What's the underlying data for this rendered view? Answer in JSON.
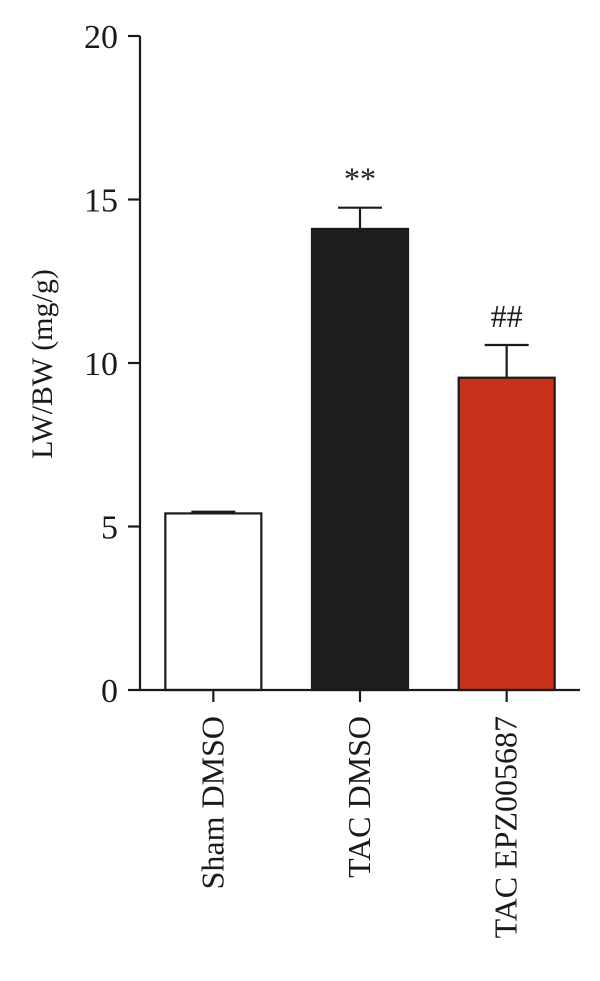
{
  "chart_data": {
    "type": "bar",
    "ylabel": "LW/BW (mg/g)",
    "ylim": [
      0,
      20
    ],
    "yticks": [
      0,
      5,
      10,
      15,
      20
    ],
    "categories": [
      "Sham DMSO",
      "TAC DMSO",
      "TAC EPZ005687"
    ],
    "values": [
      5.4,
      14.1,
      9.55
    ],
    "errors": [
      0.05,
      0.65,
      1.0
    ],
    "annotations": [
      "",
      "**",
      "##"
    ],
    "bar_colors": [
      "#ffffff",
      "#1e1e1e",
      "#c8321a"
    ],
    "grid": false,
    "legend": "none"
  }
}
